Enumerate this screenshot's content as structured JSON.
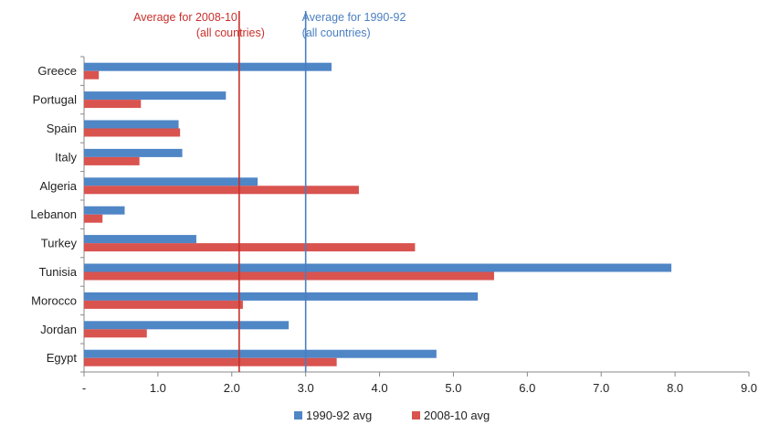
{
  "chart_data": {
    "type": "bar",
    "orientation": "horizontal",
    "categories": [
      "Greece",
      "Portugal",
      "Spain",
      "Italy",
      "Algeria",
      "Lebanon",
      "Turkey",
      "Tunisia",
      "Morocco",
      "Jordan",
      "Egypt"
    ],
    "series": [
      {
        "name": "1990-92 avg",
        "color": "#4f86c6",
        "values": [
          3.35,
          1.92,
          1.28,
          1.33,
          2.35,
          0.55,
          1.52,
          7.95,
          5.33,
          2.77,
          4.77
        ]
      },
      {
        "name": "2008-10 avg",
        "color": "#d9534f",
        "values": [
          0.2,
          0.77,
          1.3,
          0.75,
          3.72,
          0.25,
          4.48,
          5.55,
          2.15,
          0.85,
          3.42
        ]
      }
    ],
    "xlim": [
      0,
      9
    ],
    "x_ticks": [
      {
        "value": 0,
        "label": "-"
      },
      {
        "value": 1,
        "label": "1.0"
      },
      {
        "value": 2,
        "label": "2.0"
      },
      {
        "value": 3,
        "label": "3.0"
      },
      {
        "value": 4,
        "label": "4.0"
      },
      {
        "value": 5,
        "label": "5.0"
      },
      {
        "value": 6,
        "label": "6.0"
      },
      {
        "value": 7,
        "label": "7.0"
      },
      {
        "value": 8,
        "label": "8.0"
      },
      {
        "value": 9,
        "label": "9.0"
      }
    ],
    "reference_lines": [
      {
        "value": 2.1,
        "color": "#c9302c",
        "label_line1": "Average for 2008-10",
        "label_line2": "(all countries)"
      },
      {
        "value": 3.0,
        "color": "#4a7fc0",
        "label_line1": "Average for 1990-92",
        "label_line2": "(all countries)"
      }
    ],
    "title": "",
    "xlabel": "",
    "ylabel": "",
    "legend_position": "bottom-center",
    "grid": false
  }
}
